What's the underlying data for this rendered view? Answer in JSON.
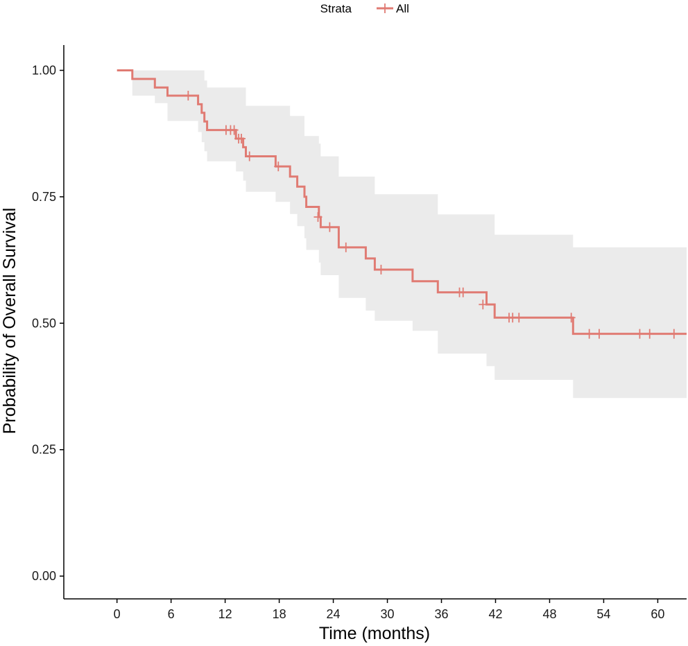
{
  "chart_data": {
    "type": "line",
    "subtype": "kaplan-meier",
    "xlabel": "Time (months)",
    "ylabel": "Probability of Overall Survival",
    "xlim": [
      -5.9,
      63.2
    ],
    "ylim": [
      -0.045,
      1.05
    ],
    "x_ticks": [
      0,
      6,
      12,
      18,
      24,
      30,
      36,
      42,
      48,
      54,
      60
    ],
    "y_ticks": [
      0,
      0.25,
      0.5,
      0.75,
      1.0
    ],
    "y_tick_labels": [
      "0.00",
      "0.25",
      "0.50",
      "0.75",
      "1.00"
    ],
    "grid": false,
    "legend": {
      "title": "Strata",
      "placement": "top",
      "entries": [
        "All"
      ]
    },
    "colors": {
      "line": "#e07b73",
      "ci_band": "#ebebeb",
      "axis": "#000000"
    },
    "series": [
      {
        "name": "All",
        "steps": [
          [
            0,
            1.0
          ],
          [
            1.7,
            0.983
          ],
          [
            4.2,
            0.966
          ],
          [
            5.6,
            0.95
          ],
          [
            9.0,
            0.933
          ],
          [
            9.4,
            0.916
          ],
          [
            9.7,
            0.899
          ],
          [
            10.0,
            0.882
          ],
          [
            13.2,
            0.865
          ],
          [
            14.0,
            0.848
          ],
          [
            14.3,
            0.83
          ],
          [
            17.6,
            0.81
          ],
          [
            19.2,
            0.79
          ],
          [
            20.0,
            0.77
          ],
          [
            20.8,
            0.75
          ],
          [
            21.0,
            0.73
          ],
          [
            22.4,
            0.71
          ],
          [
            22.6,
            0.69
          ],
          [
            24.6,
            0.65
          ],
          [
            27.6,
            0.628
          ],
          [
            28.6,
            0.606
          ],
          [
            32.8,
            0.583
          ],
          [
            35.6,
            0.561
          ],
          [
            41.0,
            0.537
          ],
          [
            41.9,
            0.511
          ],
          [
            50.6,
            0.479
          ]
        ],
        "end_x": 63.2,
        "censored": [
          [
            7.9,
            0.95
          ],
          [
            12.1,
            0.882
          ],
          [
            12.6,
            0.882
          ],
          [
            13.0,
            0.882
          ],
          [
            13.5,
            0.865
          ],
          [
            13.8,
            0.865
          ],
          [
            14.7,
            0.83
          ],
          [
            17.9,
            0.81
          ],
          [
            22.3,
            0.71
          ],
          [
            23.6,
            0.69
          ],
          [
            25.4,
            0.65
          ],
          [
            29.3,
            0.606
          ],
          [
            38.0,
            0.561
          ],
          [
            38.4,
            0.561
          ],
          [
            40.6,
            0.537
          ],
          [
            43.5,
            0.511
          ],
          [
            43.9,
            0.511
          ],
          [
            44.6,
            0.511
          ],
          [
            50.4,
            0.511
          ],
          [
            52.4,
            0.479
          ],
          [
            53.5,
            0.479
          ],
          [
            58.0,
            0.479
          ],
          [
            59.1,
            0.479
          ],
          [
            61.8,
            0.479
          ]
        ],
        "ci": [
          [
            0,
            1.0,
            1.0
          ],
          [
            1.7,
            1.0,
            0.95
          ],
          [
            4.2,
            1.0,
            0.935
          ],
          [
            5.6,
            1.0,
            0.9
          ],
          [
            9.0,
            1.0,
            0.878
          ],
          [
            9.4,
            1.0,
            0.858
          ],
          [
            9.7,
            0.98,
            0.84
          ],
          [
            10.0,
            0.966,
            0.82
          ],
          [
            13.2,
            0.966,
            0.8
          ],
          [
            14.0,
            0.966,
            0.782
          ],
          [
            14.3,
            0.93,
            0.76
          ],
          [
            17.6,
            0.93,
            0.74
          ],
          [
            19.2,
            0.91,
            0.716
          ],
          [
            20.0,
            0.91,
            0.692
          ],
          [
            20.8,
            0.87,
            0.668
          ],
          [
            21.0,
            0.87,
            0.645
          ],
          [
            22.4,
            0.855,
            0.62
          ],
          [
            22.6,
            0.83,
            0.595
          ],
          [
            24.6,
            0.79,
            0.55
          ],
          [
            27.6,
            0.79,
            0.525
          ],
          [
            28.6,
            0.755,
            0.505
          ],
          [
            32.8,
            0.755,
            0.485
          ],
          [
            35.6,
            0.715,
            0.44
          ],
          [
            41.0,
            0.715,
            0.415
          ],
          [
            41.9,
            0.675,
            0.388
          ],
          [
            50.6,
            0.65,
            0.352
          ]
        ]
      }
    ]
  }
}
